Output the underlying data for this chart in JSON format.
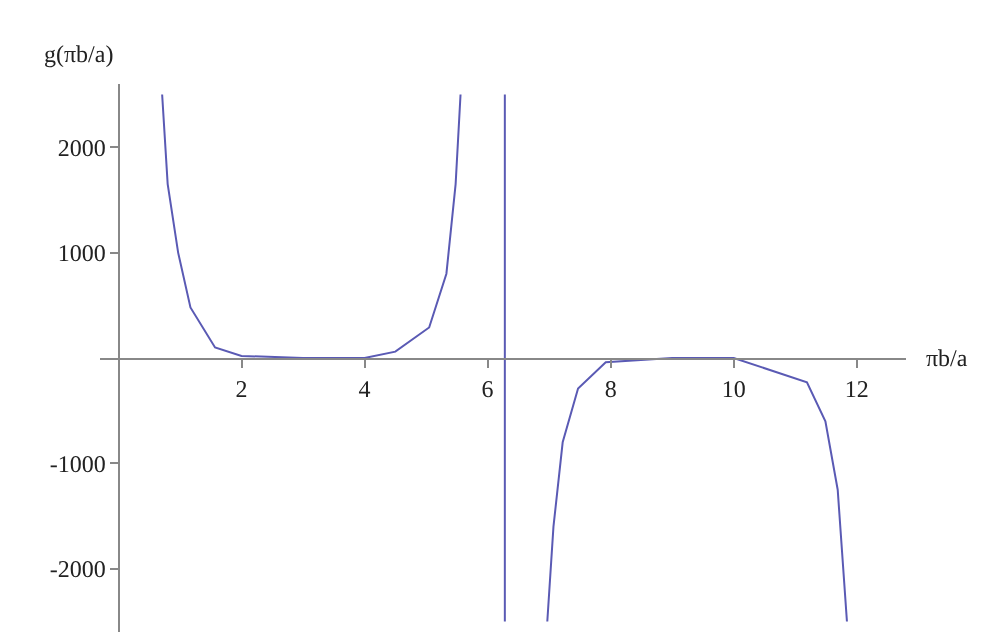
{
  "chart_data": {
    "type": "line",
    "xlabel": "πb/a",
    "ylabel": "g(πb/a)",
    "x": [
      0.71,
      0.8,
      0.97,
      1.17,
      1.57,
      2,
      3,
      4,
      4.5,
      5.05,
      5.33,
      5.48,
      5.56,
      5.9,
      6.28,
      6.28,
      6.6,
      6.97,
      7.07,
      7.22,
      7.47,
      7.92,
      9,
      10,
      11.19,
      11.49,
      11.69,
      11.84
    ],
    "series": [
      {
        "color": "#5a5ab4",
        "values": [
          2500,
          1650,
          1000,
          480,
          100,
          20,
          0,
          0,
          60,
          290,
          800,
          1650,
          2500,
          null,
          2500,
          -2500,
          null,
          -2500,
          -1600,
          -800,
          -290,
          -40,
          0,
          0,
          -230,
          -600,
          -1250,
          -2500
        ]
      }
    ],
    "xlim": [
      -0.3,
      12.8
    ],
    "ylim": [
      -2600,
      2600
    ],
    "xticks": [
      2,
      4,
      6,
      8,
      10,
      12
    ],
    "yticks": [
      -2000,
      -1000,
      1000,
      2000
    ],
    "marker": "none",
    "line_style": "solid"
  }
}
